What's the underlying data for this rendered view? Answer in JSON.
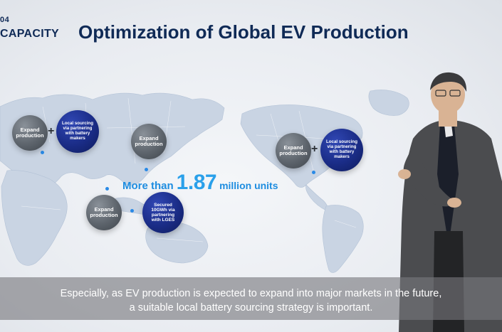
{
  "header": {
    "section_number": "04",
    "section_name": "CAPACITY",
    "title": "Optimization of Global EV Production"
  },
  "regions": {
    "europe": {
      "expand": "Expand production",
      "sourcing": "Local sourcing via partnering with battery makers",
      "plus": "+"
    },
    "asia": {
      "expand": "Expand production"
    },
    "southeast_asia": {
      "expand": "Expand production",
      "secured": "Secured 10GWh via partnering with LGES"
    },
    "north_america": {
      "expand": "Expand production",
      "sourcing": "Local sourcing via partnering with battery makers",
      "plus": "+"
    }
  },
  "stat": {
    "prefix": "More than",
    "number": "1.87",
    "suffix": "million units"
  },
  "subtitle": {
    "line1": "Especially, as EV production is expected to expand into major markets in the future,",
    "line2": "a suitable local battery sourcing strategy is important."
  },
  "colors": {
    "title_navy": "#0f2a56",
    "accent_blue": "#2aa0ea",
    "bubble_grey": "#5d646c",
    "bubble_navy": "#1a2c86"
  }
}
